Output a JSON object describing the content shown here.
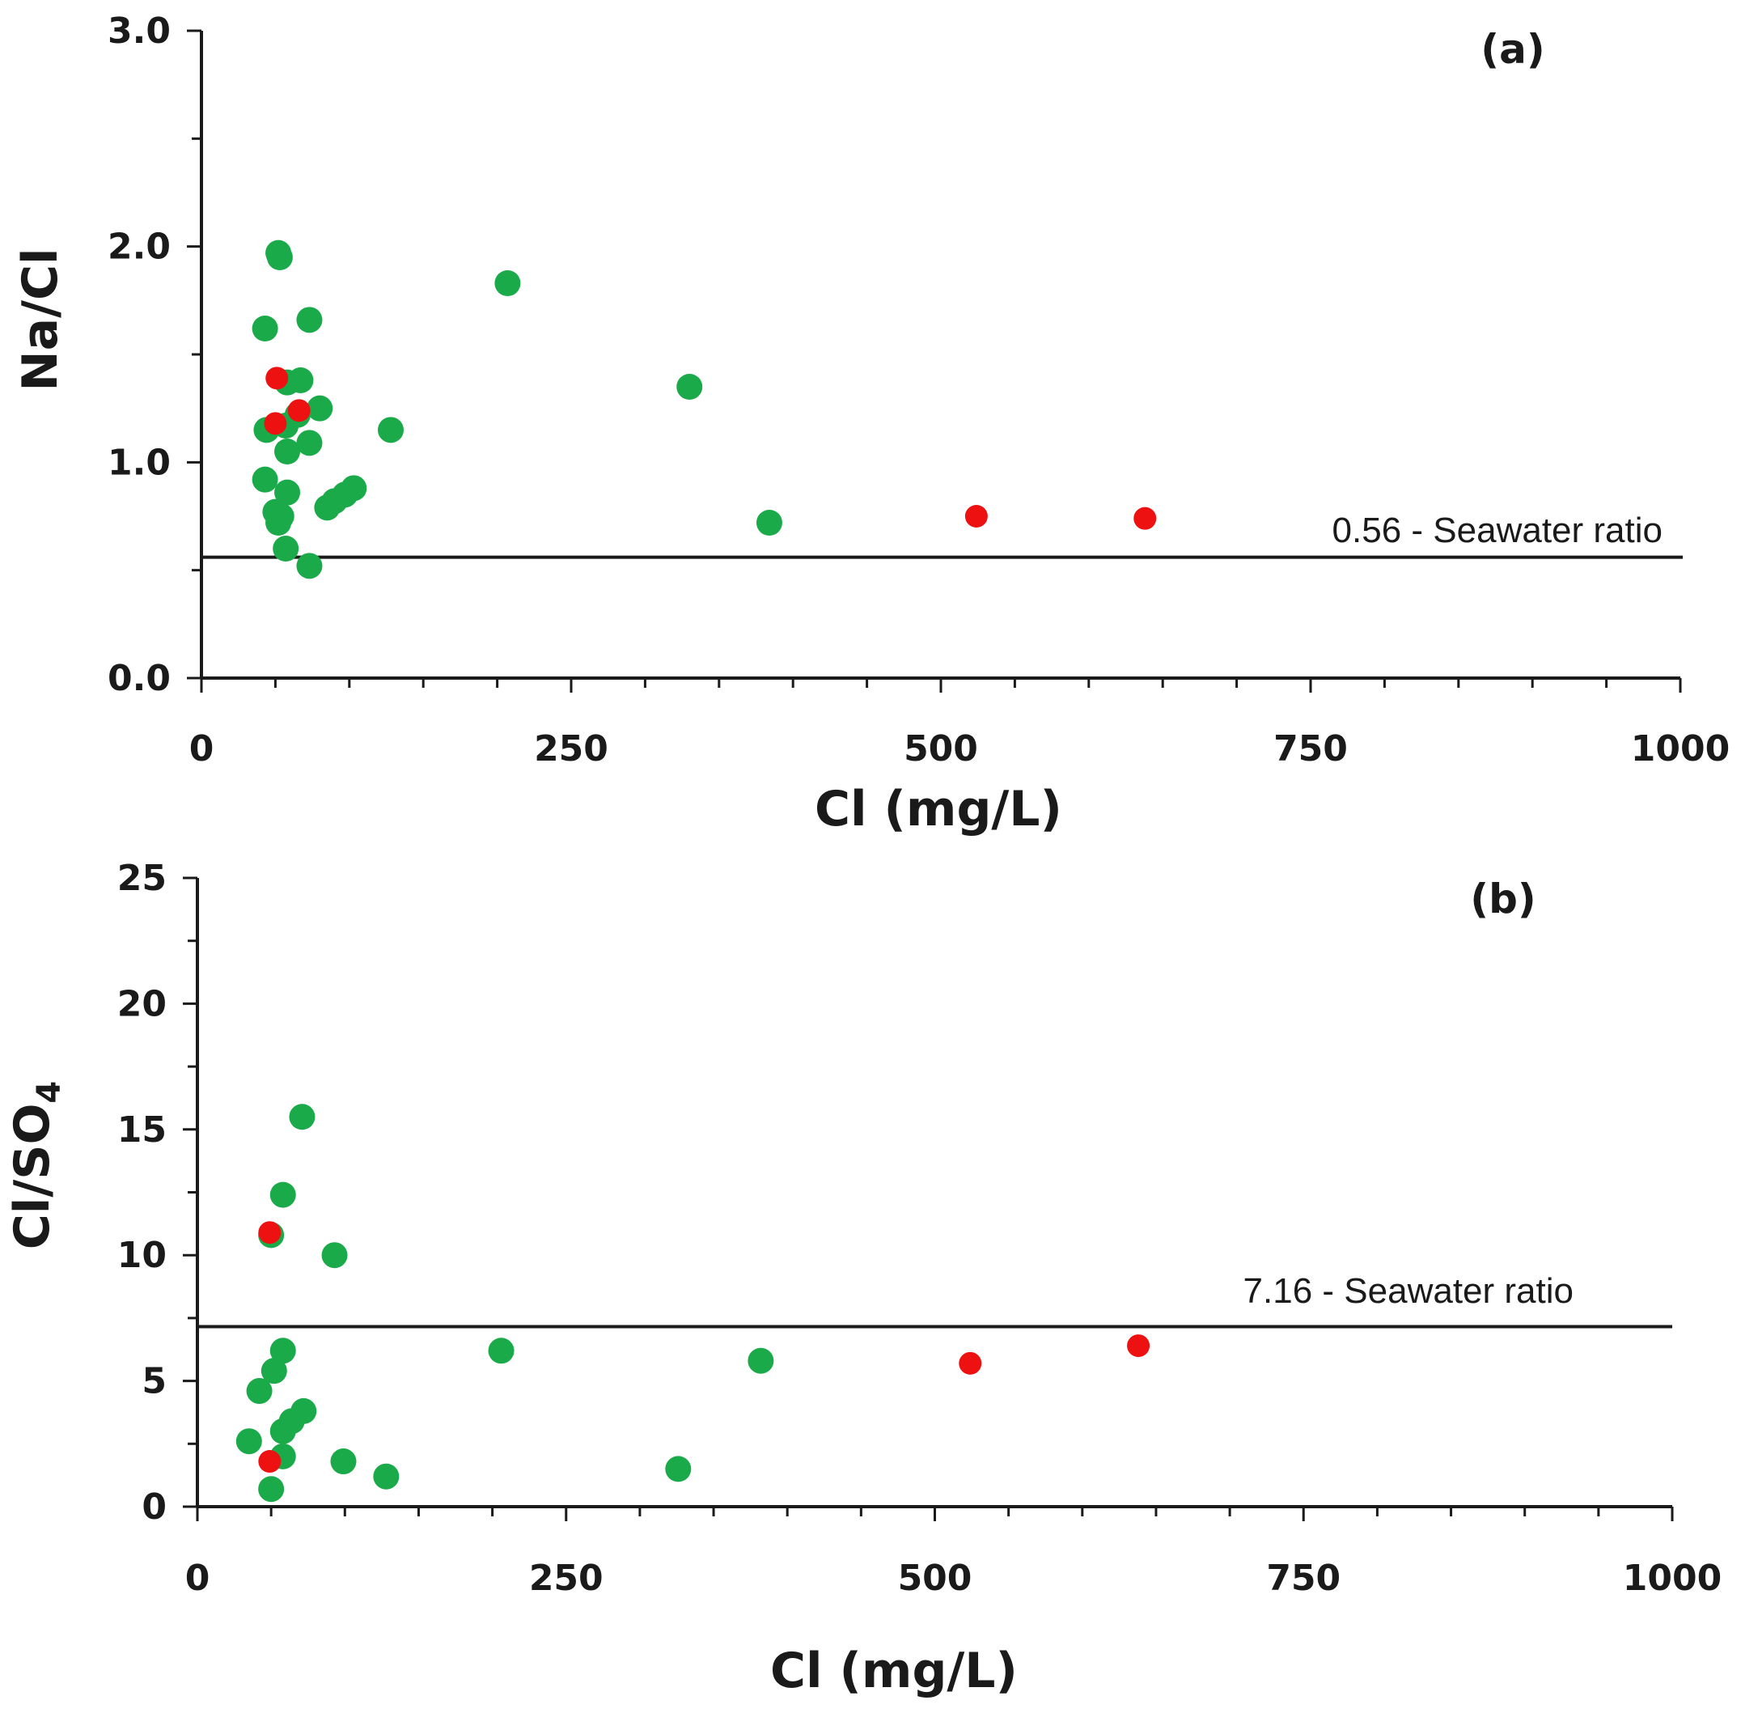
{
  "colors": {
    "green": "#1aaa4a",
    "red": "#ee1111",
    "axis": "#1a1a1a"
  },
  "chart_data": [
    {
      "type": "scatter",
      "panel_label": "(a)",
      "xlabel": "Cl (mg/L)",
      "ylabel": "Na/Cl",
      "xlim": [
        0,
        1000
      ],
      "ylim": [
        0,
        3
      ],
      "xticks": [
        0,
        250,
        500,
        750,
        1000
      ],
      "xtick_labels": [
        "0",
        "250",
        "500",
        "750",
        "1000"
      ],
      "yticks": [
        0,
        1,
        2,
        3
      ],
      "ytick_labels": [
        "0.0",
        "1.0",
        "2.0",
        "3.0"
      ],
      "x_minor_step": 50,
      "y_minor_step": 0.5,
      "reference_line": {
        "y": 0.56,
        "label": "0.56  - Seawater ratio"
      },
      "series": [
        {
          "name": "green",
          "color": "green",
          "points": [
            [
              52,
              1.97
            ],
            [
              53,
              1.95
            ],
            [
              207,
              1.83
            ],
            [
              73,
              1.66
            ],
            [
              43,
              1.62
            ],
            [
              67,
              1.38
            ],
            [
              58,
              1.37
            ],
            [
              330,
              1.35
            ],
            [
              80,
              1.25
            ],
            [
              65,
              1.22
            ],
            [
              44,
              1.15
            ],
            [
              57,
              1.17
            ],
            [
              128,
              1.15
            ],
            [
              73,
              1.09
            ],
            [
              58,
              1.05
            ],
            [
              43,
              0.92
            ],
            [
              58,
              0.86
            ],
            [
              103,
              0.88
            ],
            [
              97,
              0.85
            ],
            [
              90,
              0.82
            ],
            [
              85,
              0.79
            ],
            [
              50,
              0.77
            ],
            [
              54,
              0.75
            ],
            [
              52,
              0.72
            ],
            [
              384,
              0.72
            ],
            [
              57,
              0.6
            ],
            [
              73,
              0.52
            ]
          ]
        },
        {
          "name": "red",
          "color": "red",
          "points": [
            [
              51,
              1.39
            ],
            [
              66,
              1.24
            ],
            [
              50,
              1.18
            ],
            [
              524,
              0.75
            ],
            [
              638,
              0.74
            ]
          ]
        }
      ]
    },
    {
      "type": "scatter",
      "panel_label": "(b)",
      "xlabel": "Cl (mg/L)",
      "ylabel": "Cl/SO",
      "ylabel_sub": "4",
      "xlim": [
        0,
        1000
      ],
      "ylim": [
        0,
        25
      ],
      "xticks": [
        0,
        250,
        500,
        750,
        1000
      ],
      "xtick_labels": [
        "0",
        "250",
        "500",
        "750",
        "1000"
      ],
      "yticks": [
        0,
        5,
        10,
        15,
        20,
        25
      ],
      "ytick_labels": [
        "0",
        "5",
        "10",
        "15",
        "20",
        "25"
      ],
      "x_minor_step": 50,
      "y_minor_step": 2.5,
      "reference_line": {
        "y": 7.16,
        "label": "7.16 - Seawater ratio"
      },
      "series": [
        {
          "name": "green",
          "color": "green",
          "points": [
            [
              71,
              15.5
            ],
            [
              58,
              12.4
            ],
            [
              50,
              10.8
            ],
            [
              93,
              10.0
            ],
            [
              206,
              6.2
            ],
            [
              58,
              6.2
            ],
            [
              382,
              5.8
            ],
            [
              52,
              5.4
            ],
            [
              42,
              4.6
            ],
            [
              72,
              3.8
            ],
            [
              64,
              3.4
            ],
            [
              58,
              3.0
            ],
            [
              35,
              2.6
            ],
            [
              58,
              2.0
            ],
            [
              99,
              1.8
            ],
            [
              128,
              1.2
            ],
            [
              326,
              1.5
            ],
            [
              50,
              0.7
            ]
          ]
        },
        {
          "name": "red",
          "color": "red",
          "points": [
            [
              49,
              10.9
            ],
            [
              49,
              1.8
            ],
            [
              524,
              5.7
            ],
            [
              638,
              6.4
            ]
          ]
        }
      ]
    }
  ]
}
